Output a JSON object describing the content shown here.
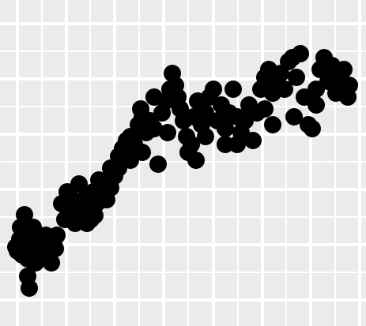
{
  "chart_data": {
    "type": "scatter",
    "xlim": [
      0,
      463
    ],
    "ylim": [
      0,
      413
    ],
    "xticks": [
      22,
      84,
      145,
      207,
      270,
      332,
      393,
      455
    ],
    "yticks": [
      33,
      103,
      173,
      243,
      313,
      383
    ],
    "xminor": [
      53,
      114,
      176,
      238,
      301,
      362,
      424
    ],
    "yminor": [
      68,
      138,
      208,
      278,
      348
    ],
    "grid": true,
    "color": "#000000",
    "background": "#ebebeb",
    "x": [
      20,
      25,
      28,
      32,
      35,
      31,
      40,
      45,
      50,
      55,
      60,
      65,
      68,
      72,
      35,
      37,
      22,
      26,
      42,
      48,
      58,
      62,
      70,
      45,
      38,
      78,
      82,
      88,
      92,
      95,
      100,
      105,
      110,
      115,
      118,
      122,
      125,
      130,
      135,
      140,
      145,
      150,
      155,
      160,
      165,
      170,
      175,
      180,
      185,
      190,
      195,
      200,
      205,
      210,
      215,
      218,
      222,
      225,
      228,
      232,
      236,
      238,
      242,
      245,
      250,
      255,
      260,
      265,
      270,
      275,
      280,
      285,
      290,
      295,
      300,
      305,
      310,
      315,
      320,
      325,
      330,
      335,
      340,
      345,
      350,
      355,
      360,
      365,
      370,
      375,
      380,
      385,
      390,
      395,
      400,
      405,
      410,
      415,
      420,
      425,
      430,
      435,
      440,
      442,
      260,
      285,
      335,
      372,
      400,
      150,
      120,
      85,
      100,
      110,
      130,
      140,
      165,
      180,
      195,
      178,
      212,
      248,
      300,
      345
    ],
    "values": [
      100,
      110,
      90,
      120,
      85,
      141,
      105,
      95,
      110,
      100,
      90,
      80,
      105,
      115,
      63,
      48,
      95,
      125,
      125,
      88,
      115,
      100,
      98,
      80,
      95,
      155,
      135,
      145,
      160,
      130,
      180,
      150,
      165,
      135,
      170,
      155,
      185,
      175,
      160,
      200,
      190,
      215,
      225,
      235,
      240,
      230,
      255,
      265,
      245,
      260,
      250,
      205,
      270,
      285,
      300,
      320,
      305,
      290,
      275,
      260,
      240,
      220,
      230,
      265,
      285,
      255,
      270,
      290,
      300,
      260,
      280,
      250,
      270,
      300,
      265,
      245,
      260,
      280,
      235,
      270,
      300,
      315,
      325,
      295,
      310,
      320,
      300,
      335,
      340,
      315,
      345,
      290,
      255,
      250,
      280,
      325,
      340,
      310,
      330,
      295,
      315,
      325,
      290,
      305,
      240,
      230,
      275,
      265,
      300,
      200,
      140,
      170,
      145,
      130,
      160,
      175,
      210,
      220,
      290,
      275,
      245,
      210,
      230,
      255
    ]
  }
}
